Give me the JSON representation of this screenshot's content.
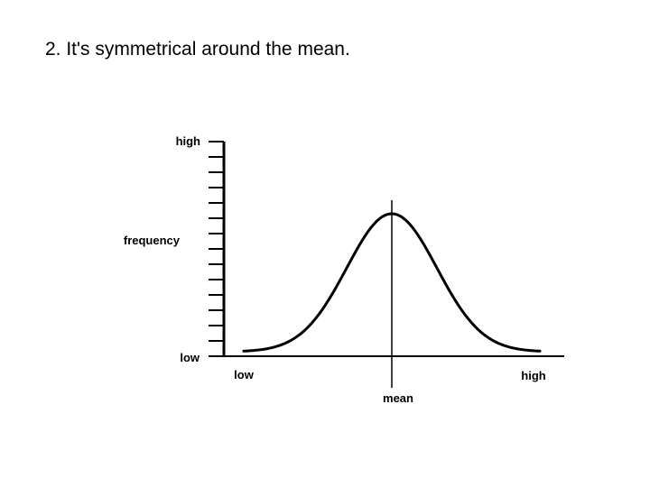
{
  "slide": {
    "title": "2. It's symmetrical around the mean."
  },
  "chart_data": {
    "type": "line",
    "curve": "normal",
    "symmetric_about": "mean",
    "ylabel": "frequency",
    "y_ticks": {
      "high": "high",
      "low": "low"
    },
    "x_ticks": {
      "low": "low",
      "high": "high"
    },
    "center_label": "mean",
    "grid": false,
    "colors": {
      "stroke": "#000000",
      "background": "#ffffff"
    }
  }
}
